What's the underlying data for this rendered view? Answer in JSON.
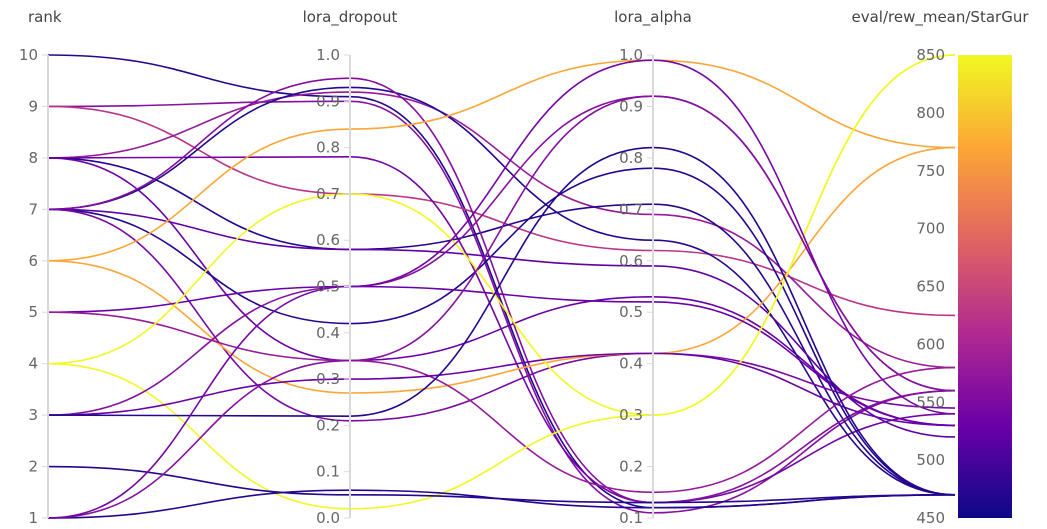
{
  "chart_data": {
    "type": "parallel-coordinates",
    "axes": [
      {
        "name": "rank",
        "range": [
          1,
          10
        ],
        "ticks": [
          "1",
          "2",
          "3",
          "4",
          "5",
          "6",
          "7",
          "8",
          "9",
          "10"
        ]
      },
      {
        "name": "lora_dropout",
        "range": [
          0,
          1
        ],
        "ticks": [
          "0.0",
          "0.1",
          "0.2",
          "0.3",
          "0.4",
          "0.5",
          "0.6",
          "0.7",
          "0.8",
          "0.9",
          "1.0"
        ]
      },
      {
        "name": "lora_alpha",
        "range": [
          0.1,
          1
        ],
        "ticks": [
          "0.1",
          "0.2",
          "0.3",
          "0.4",
          "0.5",
          "0.6",
          "0.7",
          "0.8",
          "0.9",
          "1.0"
        ]
      },
      {
        "name": "eval/rew_mean/StarGur",
        "range": [
          450,
          850
        ],
        "ticks": [
          "450",
          "500",
          "550",
          "600",
          "650",
          "700",
          "750",
          "800",
          "850"
        ]
      }
    ],
    "colorscale": {
      "metric": "eval/rew_mean/StarGur",
      "range": [
        450,
        850
      ],
      "stops": [
        "#0d0887",
        "#6a00a8",
        "#b12a90",
        "#e16462",
        "#fca636",
        "#f0f921"
      ]
    },
    "grid": false,
    "runs": [
      [
        10,
        0.91,
        0.12,
        470
      ],
      [
        9,
        0.9,
        0.11,
        560
      ],
      [
        9,
        0.7,
        0.62,
        625
      ],
      [
        8,
        0.92,
        0.69,
        580
      ],
      [
        8,
        0.78,
        0.13,
        540
      ],
      [
        8,
        0.58,
        0.71,
        470
      ],
      [
        8,
        0.34,
        0.53,
        530
      ],
      [
        7,
        0.93,
        0.64,
        470
      ],
      [
        7,
        0.95,
        0.13,
        560
      ],
      [
        7,
        0.42,
        0.78,
        470
      ],
      [
        7,
        0.58,
        0.59,
        520
      ],
      [
        7,
        0.21,
        0.42,
        545
      ],
      [
        6,
        0.27,
        0.42,
        770
      ],
      [
        6,
        0.84,
        0.99,
        770
      ],
      [
        5,
        0.5,
        0.52,
        530
      ],
      [
        5,
        0.34,
        0.15,
        580
      ],
      [
        4,
        0.7,
        0.3,
        850
      ],
      [
        4,
        0.02,
        0.3,
        850
      ],
      [
        3,
        0.3,
        0.42,
        530
      ],
      [
        3,
        0.5,
        0.92,
        560
      ],
      [
        3,
        0.22,
        0.82,
        470
      ],
      [
        2,
        0.05,
        0.13,
        470
      ],
      [
        1,
        0.06,
        0.12,
        470
      ],
      [
        1,
        0.34,
        0.92,
        560
      ],
      [
        1,
        0.5,
        0.99,
        540
      ]
    ]
  }
}
